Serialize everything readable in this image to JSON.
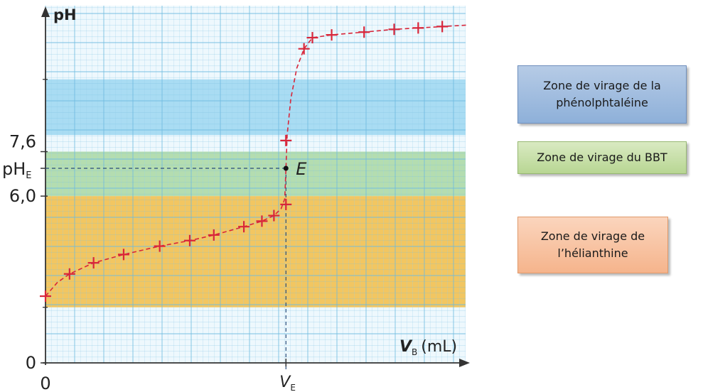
{
  "chart_data": {
    "type": "scatter",
    "title": "",
    "ylabel": "pH",
    "xlabel_main": "V",
    "xlabel_sub": "B",
    "xlabel_unit": "(mL)",
    "y_ticks": [
      {
        "label": "0",
        "value": 0
      },
      {
        "label": "6,0",
        "value": 6.0
      },
      {
        "label": "7,6",
        "value": 7.6
      }
    ],
    "x_ticks": [
      {
        "label": "0",
        "value": 0
      }
    ],
    "pHE_main": "pH",
    "pHE_sub": "E",
    "pHE_value": 7.0,
    "VE_main": "V",
    "VE_sub": "E",
    "VE_value": 20.0,
    "equivalence_label": "E",
    "grid": true,
    "zones": [
      {
        "name": "phénolphtaléine",
        "ymin": 8.2,
        "ymax": 10.2,
        "color": "#a9dcf3"
      },
      {
        "name": "BBT",
        "ymin": 6.0,
        "ymax": 7.6,
        "color": "#b4ddb0"
      },
      {
        "name": "hélianthine",
        "ymin": 2.0,
        "ymax": 6.0,
        "color": "#f2c661"
      }
    ],
    "points": [
      [
        0,
        2.4
      ],
      [
        2,
        3.2
      ],
      [
        4,
        3.6
      ],
      [
        6.5,
        3.9
      ],
      [
        9.5,
        4.2
      ],
      [
        12,
        4.4
      ],
      [
        14,
        4.6
      ],
      [
        16.5,
        4.9
      ],
      [
        18,
        5.1
      ],
      [
        19,
        5.3
      ],
      [
        20,
        5.7
      ],
      [
        20,
        8.0
      ],
      [
        21.5,
        11.3
      ],
      [
        22.2,
        11.7
      ],
      [
        23.8,
        11.8
      ],
      [
        26.5,
        11.9
      ],
      [
        29,
        12.0
      ],
      [
        31,
        12.05
      ],
      [
        33,
        12.1
      ]
    ],
    "curve": [
      [
        0,
        2.4
      ],
      [
        1,
        2.9
      ],
      [
        2,
        3.2
      ],
      [
        4,
        3.6
      ],
      [
        6.5,
        3.9
      ],
      [
        9.5,
        4.2
      ],
      [
        12,
        4.4
      ],
      [
        14,
        4.6
      ],
      [
        16.5,
        4.9
      ],
      [
        18,
        5.1
      ],
      [
        19,
        5.3
      ],
      [
        19.6,
        5.55
      ],
      [
        19.9,
        5.9
      ],
      [
        20.0,
        7.0
      ],
      [
        20.1,
        8.2
      ],
      [
        20.4,
        9.5
      ],
      [
        20.9,
        10.6
      ],
      [
        21.5,
        11.3
      ],
      [
        22.2,
        11.7
      ],
      [
        23.8,
        11.8
      ],
      [
        26.5,
        11.9
      ],
      [
        29,
        12.0
      ],
      [
        31,
        12.05
      ],
      [
        35,
        12.15
      ]
    ],
    "xlim": [
      0,
      35
    ],
    "ylim": [
      0,
      12.8
    ],
    "colors": {
      "curve": "#d8263a",
      "grid": "#9ad0ea",
      "grid_major": "#6fbbe0"
    }
  },
  "legend": {
    "phenol_line1": "Zone de virage de la",
    "phenol_line2": "phénolphtaléine",
    "bbt": "Zone de virage du BBT",
    "helian_line1": "Zone de virage de",
    "helian_line2": "l’hélianthine"
  }
}
